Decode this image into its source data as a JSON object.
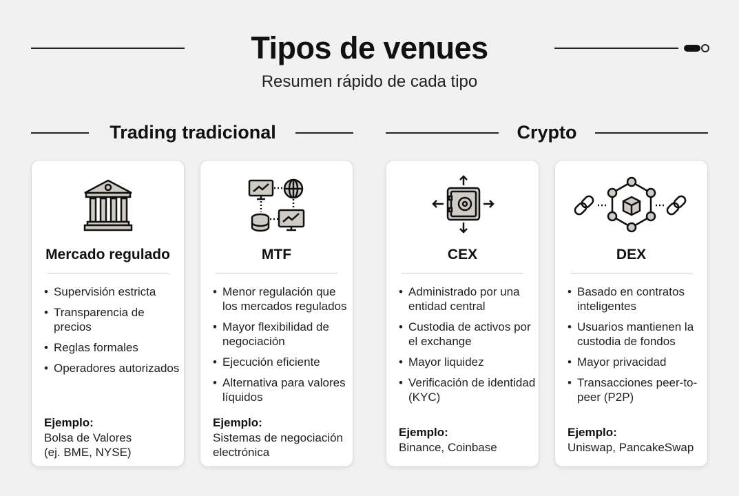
{
  "header": {
    "title": "Tipos de venues",
    "subtitle": "Resumen rápido de cada tipo"
  },
  "sections": [
    {
      "label": "Trading tradicional"
    },
    {
      "label": "Crypto"
    }
  ],
  "example_label": "Ejemplo:",
  "cards": [
    {
      "icon": "bank-building-icon",
      "name": "Mercado regulado",
      "bullets": [
        "Supervisión estricta",
        "Transparencia de precios",
        "Reglas formales",
        "Operadores autorizados"
      ],
      "example": "Bolsa de Valores (ej. BME, NYSE)"
    },
    {
      "icon": "network-computers-icon",
      "name": "MTF",
      "bullets": [
        "Menor regulación que los mercados regulados",
        "Mayor flexibilidad de negociación",
        "Ejecución eficiente",
        "Alternativa para valores líquidos"
      ],
      "example": "Sistemas de negociación electrónica"
    },
    {
      "icon": "safe-vault-icon",
      "name": "CEX",
      "bullets": [
        "Administrado por una entidad central",
        "Custodia de activos por el exchange",
        "Mayor liquidez",
        "Verificación de identidad (KYC)"
      ],
      "example": "Binance, Coinbase"
    },
    {
      "icon": "blockchain-network-icon",
      "name": "DEX",
      "bullets": [
        "Basado en contratos inteligentes",
        "Usuarios mantienen la custodia de fondos",
        "Mayor privacidad",
        "Transacciones peer-to-peer (P2P)"
      ],
      "example": "Uniswap, PancakeSwap"
    }
  ]
}
